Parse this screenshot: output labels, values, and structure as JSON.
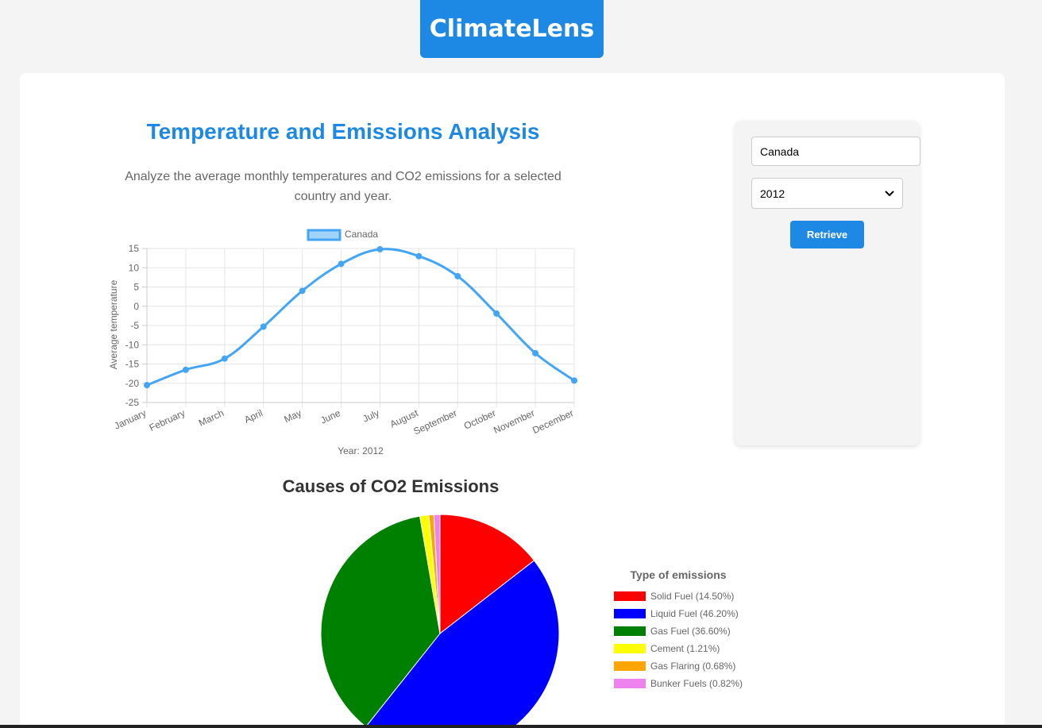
{
  "app": {
    "brand": "ClimateLens"
  },
  "main": {
    "heading": "Temperature and Emissions Analysis",
    "description": "Analyze the average monthly temperatures and CO2 emissions for a selected country and year."
  },
  "controls": {
    "country_value": "Canada",
    "year_value": "2012",
    "retrieve_label": "Retrieve"
  },
  "colors": {
    "accent": "#1e88e5",
    "line": "#42a5f5"
  },
  "chart_data": [
    {
      "type": "line",
      "title": "",
      "legend": "Canada",
      "xlabel": "Year: 2012",
      "ylabel": "Average temperature",
      "ylim": [
        -25,
        15
      ],
      "yticks": [
        "15",
        "10",
        "5",
        "0",
        "-5",
        "-10",
        "-15",
        "-20",
        "-25"
      ],
      "categories": [
        "January",
        "February",
        "March",
        "April",
        "May",
        "June",
        "July",
        "August",
        "September",
        "October",
        "November",
        "December"
      ],
      "series": [
        {
          "name": "Canada",
          "values": [
            -20.5,
            -16.5,
            -13.6,
            -5.3,
            4.0,
            11.0,
            14.8,
            13.0,
            7.8,
            -1.9,
            -12.2,
            -19.3
          ]
        }
      ]
    },
    {
      "type": "pie",
      "title": "Causes of CO2 Emissions",
      "legend_title": "Type of emissions",
      "categories": [
        "Solid Fuel",
        "Liquid Fuel",
        "Gas Fuel",
        "Cement",
        "Gas Flaring",
        "Bunker Fuels"
      ],
      "labels": [
        "Solid Fuel (14.50%)",
        "Liquid Fuel (46.20%)",
        "Gas Fuel (36.60%)",
        "Cement (1.21%)",
        "Gas Flaring (0.68%)",
        "Bunker Fuels (0.82%)"
      ],
      "values": [
        14.5,
        46.2,
        36.6,
        1.21,
        0.68,
        0.82
      ],
      "colors": [
        "#ff0000",
        "#0000ff",
        "#008000",
        "#ffff00",
        "#ffa500",
        "#ee82ee"
      ]
    }
  ]
}
